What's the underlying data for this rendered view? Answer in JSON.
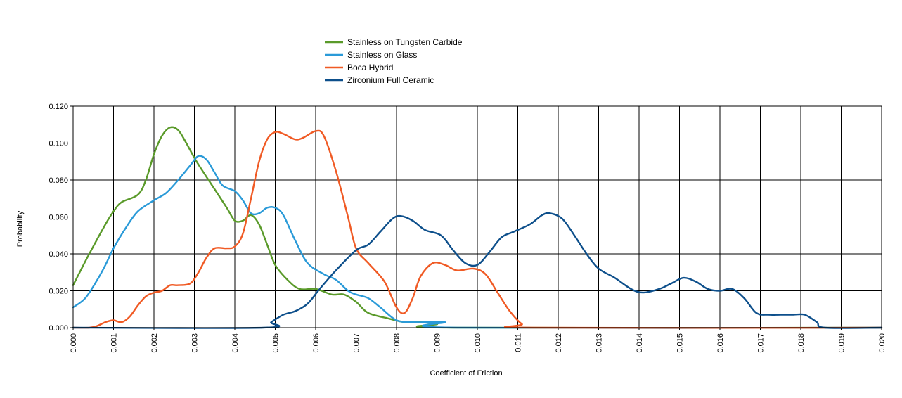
{
  "chart_data": {
    "type": "line",
    "title": "",
    "xlabel": "Coefficient of Friction",
    "ylabel": "Probability",
    "xlim": [
      0.0,
      0.02
    ],
    "ylim": [
      0.0,
      0.12
    ],
    "x_ticks": [
      "0.000",
      "0.001",
      "0.002",
      "0.003",
      "0.004",
      "0.005",
      "0.006",
      "0.007",
      "0.008",
      "0.009",
      "0.010",
      "0.011",
      "0.012",
      "0.013",
      "0.014",
      "0.015",
      "0.016",
      "0.017",
      "0.018",
      "0.019",
      "0.020"
    ],
    "y_ticks": [
      "0.000",
      "0.020",
      "0.040",
      "0.060",
      "0.080",
      "0.100",
      "0.120"
    ],
    "grid": true,
    "legend_position": "top-center",
    "series": [
      {
        "name": "Stainless on Tungsten Carbide",
        "color": "#5a9a2a",
        "points": [
          [
            0.0,
            0.023
          ],
          [
            0.0004,
            0.04
          ],
          [
            0.0008,
            0.056
          ],
          [
            0.001,
            0.063
          ],
          [
            0.0012,
            0.068
          ],
          [
            0.0016,
            0.072
          ],
          [
            0.0018,
            0.08
          ],
          [
            0.002,
            0.094
          ],
          [
            0.0022,
            0.104
          ],
          [
            0.0024,
            0.1085
          ],
          [
            0.0026,
            0.107
          ],
          [
            0.0028,
            0.1
          ],
          [
            0.003,
            0.092
          ],
          [
            0.0032,
            0.085
          ],
          [
            0.0035,
            0.075
          ],
          [
            0.0038,
            0.065
          ],
          [
            0.004,
            0.058
          ],
          [
            0.0042,
            0.058
          ],
          [
            0.0044,
            0.061
          ],
          [
            0.0046,
            0.056
          ],
          [
            0.0048,
            0.045
          ],
          [
            0.005,
            0.034
          ],
          [
            0.0053,
            0.026
          ],
          [
            0.0056,
            0.021
          ],
          [
            0.006,
            0.021
          ],
          [
            0.0064,
            0.018
          ],
          [
            0.0067,
            0.018
          ],
          [
            0.007,
            0.014
          ],
          [
            0.0073,
            0.008
          ],
          [
            0.0078,
            0.005
          ],
          [
            0.0082,
            0.003
          ],
          [
            0.0086,
            0.003
          ],
          [
            0.009,
            0.002
          ],
          [
            0.0094,
            0.0
          ],
          [
            0.02,
            0.0
          ]
        ]
      },
      {
        "name": "Stainless on Glass",
        "color": "#2a9ad8",
        "points": [
          [
            0.0,
            0.011
          ],
          [
            0.0003,
            0.016
          ],
          [
            0.0006,
            0.026
          ],
          [
            0.0008,
            0.034
          ],
          [
            0.001,
            0.043
          ],
          [
            0.0013,
            0.054
          ],
          [
            0.0016,
            0.063
          ],
          [
            0.002,
            0.069
          ],
          [
            0.0023,
            0.073
          ],
          [
            0.0026,
            0.08
          ],
          [
            0.0029,
            0.088
          ],
          [
            0.0031,
            0.093
          ],
          [
            0.0033,
            0.091
          ],
          [
            0.0035,
            0.084
          ],
          [
            0.0037,
            0.077
          ],
          [
            0.004,
            0.074
          ],
          [
            0.0042,
            0.069
          ],
          [
            0.0044,
            0.062
          ],
          [
            0.0046,
            0.062
          ],
          [
            0.0048,
            0.065
          ],
          [
            0.005,
            0.065
          ],
          [
            0.0052,
            0.061
          ],
          [
            0.0055,
            0.047
          ],
          [
            0.0058,
            0.035
          ],
          [
            0.0062,
            0.029
          ],
          [
            0.0065,
            0.026
          ],
          [
            0.0068,
            0.02
          ],
          [
            0.007,
            0.018
          ],
          [
            0.0073,
            0.016
          ],
          [
            0.0076,
            0.011
          ],
          [
            0.008,
            0.004
          ],
          [
            0.0084,
            0.003
          ],
          [
            0.0088,
            0.003
          ],
          [
            0.0092,
            0.003
          ],
          [
            0.0095,
            0.0
          ],
          [
            0.02,
            0.0
          ]
        ]
      },
      {
        "name": "Boca Hybrid",
        "color": "#f05a24",
        "points": [
          [
            0.0,
            0.0
          ],
          [
            0.0004,
            0.0
          ],
          [
            0.0006,
            0.001
          ],
          [
            0.0008,
            0.003
          ],
          [
            0.001,
            0.004
          ],
          [
            0.0012,
            0.003
          ],
          [
            0.0014,
            0.006
          ],
          [
            0.0016,
            0.012
          ],
          [
            0.0018,
            0.017
          ],
          [
            0.002,
            0.019
          ],
          [
            0.0022,
            0.02
          ],
          [
            0.0024,
            0.023
          ],
          [
            0.0026,
            0.023
          ],
          [
            0.0029,
            0.024
          ],
          [
            0.0031,
            0.03
          ],
          [
            0.0033,
            0.038
          ],
          [
            0.0035,
            0.043
          ],
          [
            0.0038,
            0.043
          ],
          [
            0.004,
            0.044
          ],
          [
            0.0042,
            0.051
          ],
          [
            0.0044,
            0.07
          ],
          [
            0.0046,
            0.09
          ],
          [
            0.0048,
            0.102
          ],
          [
            0.005,
            0.106
          ],
          [
            0.0052,
            0.105
          ],
          [
            0.0055,
            0.102
          ],
          [
            0.0057,
            0.103
          ],
          [
            0.006,
            0.1065
          ],
          [
            0.0062,
            0.104
          ],
          [
            0.0065,
            0.085
          ],
          [
            0.0068,
            0.06
          ],
          [
            0.007,
            0.043
          ],
          [
            0.0073,
            0.035
          ],
          [
            0.0077,
            0.025
          ],
          [
            0.008,
            0.011
          ],
          [
            0.0082,
            0.008
          ],
          [
            0.0084,
            0.016
          ],
          [
            0.0086,
            0.028
          ],
          [
            0.0089,
            0.035
          ],
          [
            0.0092,
            0.034
          ],
          [
            0.0095,
            0.031
          ],
          [
            0.0099,
            0.032
          ],
          [
            0.0102,
            0.029
          ],
          [
            0.0105,
            0.019
          ],
          [
            0.0108,
            0.009
          ],
          [
            0.0111,
            0.002
          ],
          [
            0.0114,
            0.0
          ],
          [
            0.02,
            0.0
          ]
        ]
      },
      {
        "name": "Zirconium Full Ceramic",
        "color": "#0d4f8b",
        "points": [
          [
            0.0,
            0.0
          ],
          [
            0.0047,
            0.0
          ],
          [
            0.0049,
            0.003
          ],
          [
            0.0052,
            0.007
          ],
          [
            0.0055,
            0.009
          ],
          [
            0.0058,
            0.013
          ],
          [
            0.0061,
            0.021
          ],
          [
            0.0065,
            0.031
          ],
          [
            0.007,
            0.042
          ],
          [
            0.0073,
            0.045
          ],
          [
            0.0076,
            0.052
          ],
          [
            0.0079,
            0.059
          ],
          [
            0.0081,
            0.0605
          ],
          [
            0.0084,
            0.058
          ],
          [
            0.0087,
            0.053
          ],
          [
            0.0091,
            0.05
          ],
          [
            0.0094,
            0.042
          ],
          [
            0.0097,
            0.035
          ],
          [
            0.01,
            0.034
          ],
          [
            0.0103,
            0.041
          ],
          [
            0.0106,
            0.049
          ],
          [
            0.0109,
            0.052
          ],
          [
            0.0113,
            0.056
          ],
          [
            0.0116,
            0.061
          ],
          [
            0.0118,
            0.062
          ],
          [
            0.0121,
            0.059
          ],
          [
            0.0124,
            0.05
          ],
          [
            0.0127,
            0.04
          ],
          [
            0.013,
            0.032
          ],
          [
            0.0134,
            0.027
          ],
          [
            0.0138,
            0.021
          ],
          [
            0.0141,
            0.019
          ],
          [
            0.0145,
            0.021
          ],
          [
            0.0148,
            0.024
          ],
          [
            0.0151,
            0.027
          ],
          [
            0.0154,
            0.025
          ],
          [
            0.0157,
            0.021
          ],
          [
            0.016,
            0.02
          ],
          [
            0.0163,
            0.021
          ],
          [
            0.0166,
            0.016
          ],
          [
            0.0169,
            0.008
          ],
          [
            0.0172,
            0.007
          ],
          [
            0.0175,
            0.007
          ],
          [
            0.0178,
            0.007
          ],
          [
            0.0181,
            0.007
          ],
          [
            0.0184,
            0.003
          ],
          [
            0.0186,
            0.0
          ],
          [
            0.02,
            0.0
          ]
        ]
      }
    ]
  }
}
